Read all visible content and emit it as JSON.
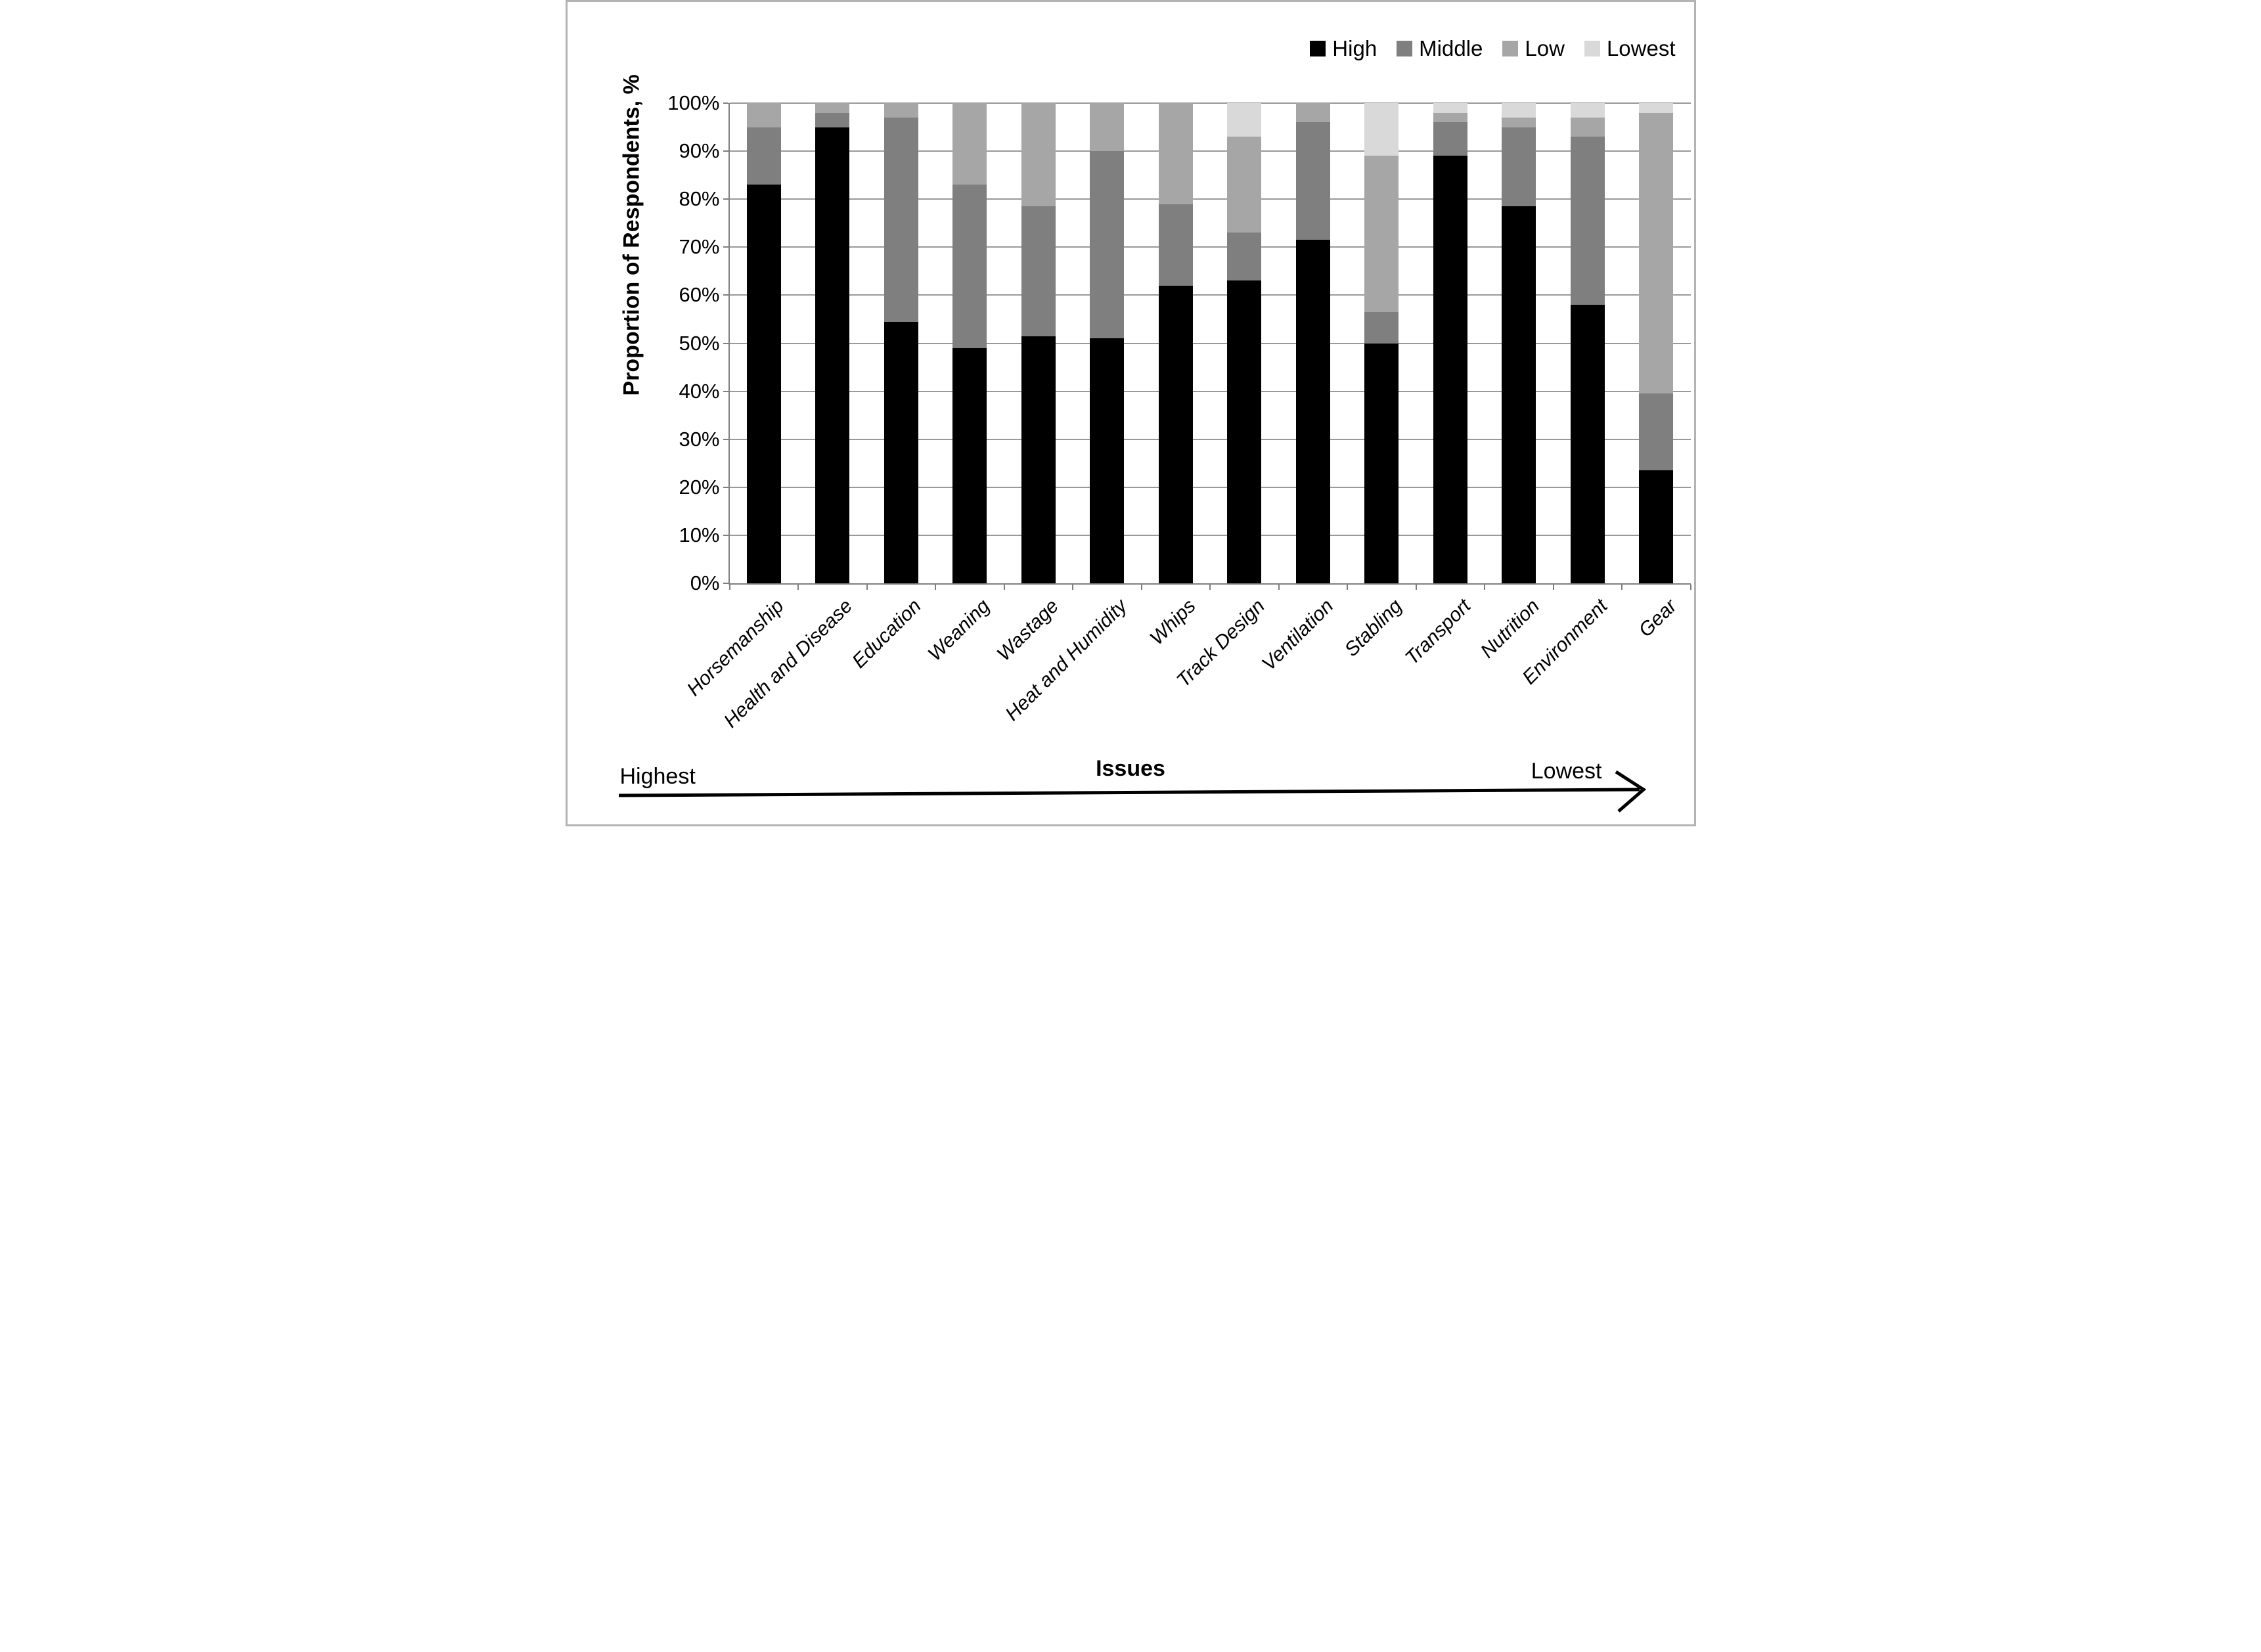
{
  "chart_data": {
    "type": "bar",
    "subtype": "stacked-100-percent",
    "title": "",
    "xlabel": "Issues",
    "ylabel": "Proportion of Respondents, %",
    "ylim": [
      0,
      100
    ],
    "ytick_step": 10,
    "ytick_labels": [
      "0%",
      "10%",
      "20%",
      "30%",
      "40%",
      "50%",
      "60%",
      "70%",
      "80%",
      "90%",
      "100%"
    ],
    "grid": true,
    "legend_position": "top-right",
    "categories": [
      "Horsemanship",
      "Health and Disease",
      "Education",
      "Weaning",
      "Wastage",
      "Heat and Humidity",
      "Whips",
      "Track Design",
      "Ventilation",
      "Stabling",
      "Transport",
      "Nutrition",
      "Environment",
      "Gear"
    ],
    "series": [
      {
        "name": "High",
        "color": "#000000",
        "values": [
          83,
          95,
          54.5,
          49,
          51.5,
          51,
          62,
          63,
          71.5,
          50,
          89,
          78.5,
          58,
          23.5
        ]
      },
      {
        "name": "Middle",
        "color": "#7f7f7f",
        "values": [
          12,
          3,
          42.5,
          34,
          27,
          39,
          17,
          10,
          24.5,
          6.5,
          7,
          16.5,
          35,
          16
        ]
      },
      {
        "name": "Low",
        "color": "#a6a6a6",
        "values": [
          5,
          2,
          3,
          17,
          21.5,
          10,
          21,
          20,
          4,
          32.5,
          2,
          2,
          4,
          58.5
        ]
      },
      {
        "name": "Lowest",
        "color": "#d9d9d9",
        "values": [
          0,
          0,
          0,
          0,
          0,
          0,
          0,
          7,
          0,
          11,
          2,
          3,
          3,
          2
        ]
      }
    ],
    "annotations": {
      "highest": "Highest",
      "lowest": "Lowest"
    },
    "colors": {
      "gridline": "#999999",
      "axis": "#7f7f7f",
      "border": "#b3b3b3"
    }
  }
}
